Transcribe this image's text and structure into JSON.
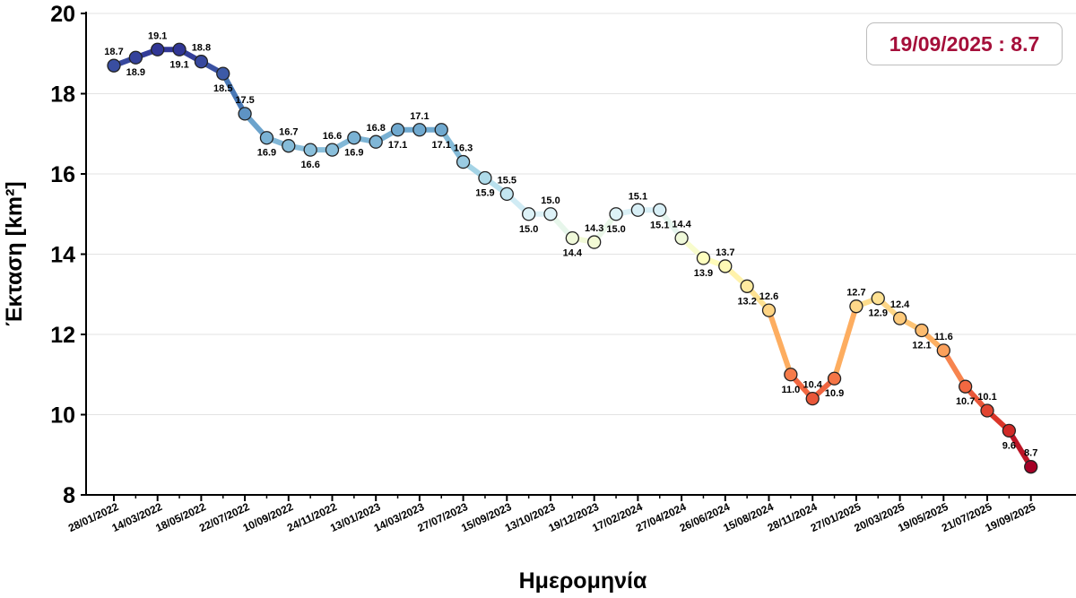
{
  "chart_data": {
    "type": "line",
    "title": "",
    "xlabel": "Ημερομηνία",
    "ylabel": "Έκταση [km²]",
    "ylim": [
      8,
      20
    ],
    "yticks": [
      8,
      10,
      12,
      14,
      16,
      18,
      20
    ],
    "grid": "horizontal",
    "xticks": [
      "28/01/2022",
      "14/03/2022",
      "18/05/2022",
      "22/07/2022",
      "10/09/2022",
      "24/11/2022",
      "13/01/2023",
      "14/03/2023",
      "27/07/2023",
      "15/09/2023",
      "13/10/2023",
      "19/12/2023",
      "17/02/2024",
      "27/04/2024",
      "26/06/2024",
      "15/08/2024",
      "28/11/2024",
      "27/01/2025",
      "20/03/2025",
      "19/05/2025",
      "21/07/2025",
      "19/09/2025"
    ],
    "values": [
      18.7,
      18.9,
      19.1,
      19.1,
      18.8,
      18.5,
      17.5,
      16.9,
      16.7,
      16.6,
      16.6,
      16.9,
      16.8,
      17.1,
      17.1,
      17.1,
      16.3,
      15.9,
      15.5,
      15.0,
      15.0,
      14.4,
      14.3,
      15.0,
      15.1,
      15.1,
      14.4,
      13.9,
      13.7,
      13.2,
      12.6,
      11.0,
      10.4,
      10.9,
      12.7,
      12.9,
      12.4,
      12.1,
      11.6,
      10.7,
      10.1,
      9.6,
      8.7
    ],
    "point_labels": [
      "18.7",
      "18.9",
      "19.1",
      "19.1",
      "18.8",
      "18.5",
      "17.5",
      "16.9",
      "16.7",
      "16.6",
      "16.6",
      "16.9",
      "16.8",
      "17.1",
      "17.1",
      "17.1",
      "16.3",
      "15.9",
      "15.5",
      "15.0",
      "15.0",
      "14.4",
      "14.3",
      "15.0",
      "15.1",
      "15.1",
      "14.4",
      "13.9",
      "13.7",
      "13.2",
      "12.6",
      "11.0",
      "10.4",
      "10.9",
      "12.7",
      "12.9",
      "12.4",
      "12.1",
      "11.6",
      "10.7",
      "10.1",
      "9.6",
      "8.7"
    ],
    "label_positions": [
      "above",
      "below",
      "above",
      "below",
      "above",
      "below",
      "above",
      "below",
      "above",
      "below",
      "above",
      "below",
      "above",
      "below",
      "above",
      "below",
      "above",
      "below",
      "above",
      "below",
      "above",
      "below",
      "above",
      "below",
      "above",
      "below",
      "above",
      "below",
      "above",
      "below",
      "above",
      "below",
      "above",
      "below",
      "above",
      "below",
      "above",
      "below",
      "above",
      "below",
      "above",
      "below",
      "above"
    ],
    "colormap": "RdYlBu_r",
    "annotation": "19/09/2025 : 8.7"
  },
  "colors": {
    "annotation_text": "#a50f3a",
    "annotation_border": "#bdbdbd",
    "grid": "#e3e3e3",
    "axis": "#000000"
  }
}
